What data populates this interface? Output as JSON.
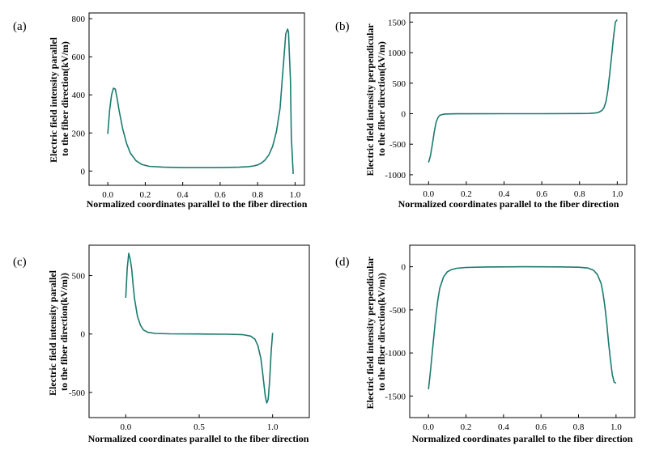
{
  "figure": {
    "line_color": "#1b7a6e",
    "panels": [
      {
        "letter": "(a)",
        "xlabel": "Normalized coordinates parallel to the fiber direction",
        "ylabel_lines": [
          "Electric field intensity parallel",
          "to the fiber direction(kV/m)"
        ]
      },
      {
        "letter": "(b)",
        "xlabel": "Normalized coordinates parallel to the fiber direction",
        "ylabel_lines": [
          "Electric field intensity perpendicular",
          "to the fiber direction(kV/m)"
        ]
      },
      {
        "letter": "(c)",
        "xlabel": "Normalized coordinates parallel to the fiber direction",
        "ylabel_lines": [
          "Electric field intensity parallel",
          "to the fiber direction(kV/m))"
        ]
      },
      {
        "letter": "(d)",
        "xlabel": "Normalized coordinates parallel to the fiber direction",
        "ylabel_lines": [
          "Electric field intensity perpendicular",
          "to the fiber direction(kV/m))"
        ]
      }
    ]
  },
  "chart_data": [
    {
      "type": "line",
      "title": "",
      "xlabel": "Normalized coordinates parallel to the fiber direction",
      "ylabel": "Electric field intensity parallel to the fiber direction(kV/m)",
      "xlim": [
        -0.1,
        1.05
      ],
      "ylim": [
        -75,
        830
      ],
      "xticks": [
        0.0,
        0.2,
        0.4,
        0.6,
        0.8,
        1.0
      ],
      "xtick_labels": [
        "0.0",
        "0.2",
        "0.4",
        "0.6",
        "0.8",
        "1.0"
      ],
      "yticks": [
        0,
        200,
        400,
        600,
        800
      ],
      "ytick_labels": [
        "0",
        "200",
        "400",
        "600",
        "800"
      ],
      "grid": false,
      "series": [
        {
          "x": [
            0.0,
            0.01,
            0.02,
            0.03,
            0.04,
            0.05,
            0.06,
            0.08,
            0.1,
            0.12,
            0.15,
            0.18,
            0.22,
            0.3,
            0.4,
            0.5,
            0.6,
            0.7,
            0.75,
            0.78,
            0.8,
            0.82,
            0.84,
            0.86,
            0.88,
            0.9,
            0.92,
            0.93,
            0.94,
            0.95,
            0.96,
            0.965,
            0.97,
            0.975,
            0.98,
            0.99
          ],
          "y": [
            195,
            320,
            400,
            435,
            430,
            380,
            320,
            220,
            145,
            95,
            55,
            35,
            25,
            20,
            18,
            18,
            18,
            20,
            23,
            27,
            32,
            42,
            58,
            85,
            130,
            205,
            330,
            460,
            590,
            720,
            745,
            730,
            600,
            480,
            180,
            -15
          ]
        }
      ]
    },
    {
      "type": "line",
      "title": "",
      "xlabel": "Normalized coordinates parallel to the fiber direction",
      "ylabel": "Electric field intensity perpendicular to the fiber direction(kV/m)",
      "xlim": [
        -0.1,
        1.05
      ],
      "ylim": [
        -1160,
        1650
      ],
      "xticks": [
        0.0,
        0.2,
        0.4,
        0.6,
        0.8,
        1.0
      ],
      "xtick_labels": [
        "0.0",
        "0.2",
        "0.4",
        "0.6",
        "0.8",
        "1.0"
      ],
      "yticks": [
        -1000,
        -500,
        0,
        500,
        1000,
        1500
      ],
      "ytick_labels": [
        "-1000",
        "-500",
        "0",
        "500",
        "1000",
        "1500"
      ],
      "grid": false,
      "series": [
        {
          "x": [
            0.0,
            0.01,
            0.02,
            0.03,
            0.04,
            0.05,
            0.06,
            0.08,
            0.1,
            0.15,
            0.2,
            0.4,
            0.6,
            0.8,
            0.85,
            0.88,
            0.9,
            0.92,
            0.93,
            0.94,
            0.95,
            0.96,
            0.97,
            0.98,
            0.99,
            1.0
          ],
          "y": [
            -800,
            -690,
            -500,
            -300,
            -140,
            -60,
            -25,
            -8,
            -4,
            -2,
            -1,
            0,
            0,
            2,
            4,
            10,
            20,
            55,
            100,
            200,
            380,
            650,
            950,
            1250,
            1500,
            1540
          ]
        }
      ]
    },
    {
      "type": "line",
      "title": "",
      "xlabel": "Normalized coordinates parallel to the fiber direction",
      "ylabel": "Electric field intensity parallel to the fiber direction(kV/m))",
      "xlim": [
        -0.25,
        1.25
      ],
      "ylim": [
        -715,
        760
      ],
      "xticks": [
        0.0,
        0.5,
        1.0
      ],
      "xtick_labels": [
        "0.0",
        "0.5",
        "1.0"
      ],
      "yticks": [
        -500,
        0,
        500
      ],
      "ytick_labels": [
        "-500",
        "0",
        "500"
      ],
      "grid": false,
      "series": [
        {
          "x": [
            0.0,
            0.01,
            0.02,
            0.03,
            0.04,
            0.05,
            0.06,
            0.08,
            0.1,
            0.12,
            0.15,
            0.2,
            0.3,
            0.5,
            0.7,
            0.8,
            0.85,
            0.88,
            0.9,
            0.92,
            0.93,
            0.94,
            0.95,
            0.96,
            0.97,
            0.98,
            0.99,
            1.0
          ],
          "y": [
            310,
            560,
            690,
            640,
            560,
            420,
            300,
            150,
            75,
            35,
            15,
            5,
            2,
            0,
            -2,
            -6,
            -18,
            -45,
            -100,
            -210,
            -310,
            -420,
            -530,
            -590,
            -560,
            -400,
            -150,
            10
          ]
        }
      ]
    },
    {
      "type": "line",
      "title": "",
      "xlabel": "Normalized coordinates parallel to the fiber direction",
      "ylabel": "Electric field intensity perpendicular to the fiber direction(kV/m))",
      "xlim": [
        -0.1,
        1.1
      ],
      "ylim": [
        1750,
        -250
      ],
      "yaxis_inverted": true,
      "xticks": [
        0.0,
        0.2,
        0.4,
        0.6,
        0.8,
        1.0
      ],
      "xtick_labels": [
        "0.0",
        "0.2",
        "0.4",
        "0.6",
        "0.8",
        "1.0"
      ],
      "yticks": [
        0,
        500,
        1000,
        1500
      ],
      "ytick_labels": [
        "0",
        "-500",
        "-1000",
        "-1500"
      ],
      "grid": false,
      "series": [
        {
          "x": [
            0.0,
            0.01,
            0.02,
            0.03,
            0.04,
            0.05,
            0.06,
            0.08,
            0.1,
            0.12,
            0.15,
            0.2,
            0.3,
            0.5,
            0.7,
            0.8,
            0.85,
            0.88,
            0.9,
            0.92,
            0.93,
            0.94,
            0.95,
            0.96,
            0.97,
            0.98,
            0.99,
            1.0
          ],
          "y": [
            1420,
            1220,
            1000,
            780,
            560,
            380,
            250,
            120,
            60,
            35,
            18,
            8,
            3,
            0,
            2,
            5,
            15,
            40,
            90,
            190,
            300,
            450,
            650,
            880,
            1080,
            1250,
            1340,
            1350
          ]
        }
      ]
    }
  ]
}
